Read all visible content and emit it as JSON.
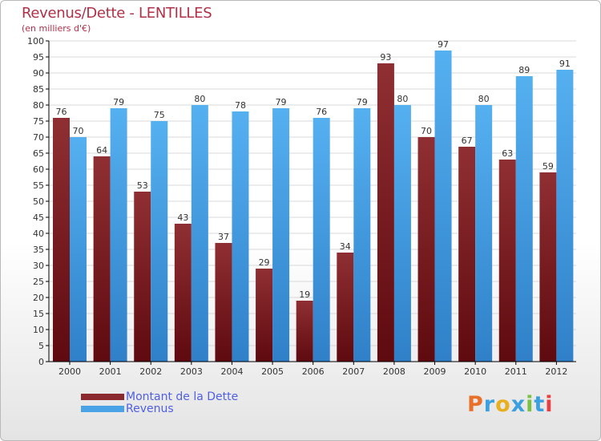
{
  "title": "Revenus/Dette - LENTILLES",
  "subtitle": "(en milliers d'€)",
  "colors": {
    "dette": "#8a2a2e",
    "revenus": "#4aa3e6",
    "axis": "#000000",
    "grid": "#d8d8d8",
    "title": "#b03048",
    "legend_text": "#5060e0"
  },
  "legend": {
    "dette_label": "Montant de la Dette",
    "revenus_label": "Revenus"
  },
  "brand": {
    "letters": [
      "P",
      "r",
      "o",
      "x",
      "i",
      "t",
      "i"
    ],
    "letter_colors": [
      "#e8702a",
      "#3aa0e0",
      "#e8b020",
      "#3aa0e0",
      "#7ac043",
      "#3aa0e0",
      "#e84040"
    ]
  },
  "chart_data": {
    "type": "bar",
    "categories": [
      "2000",
      "2001",
      "2002",
      "2003",
      "2004",
      "2005",
      "2006",
      "2007",
      "2008",
      "2009",
      "2010",
      "2011",
      "2012"
    ],
    "series": [
      {
        "name": "Montant de la Dette",
        "values": [
          76,
          64,
          53,
          43,
          37,
          29,
          19,
          34,
          93,
          70,
          67,
          63,
          59
        ]
      },
      {
        "name": "Revenus",
        "values": [
          70,
          79,
          75,
          80,
          78,
          79,
          76,
          79,
          80,
          97,
          80,
          89,
          91
        ]
      }
    ],
    "title": "Revenus/Dette - LENTILLES",
    "ylim": [
      0,
      100
    ],
    "ytick_step": 5,
    "grid": true,
    "legend": "bottom-left",
    "data_labels": true
  }
}
